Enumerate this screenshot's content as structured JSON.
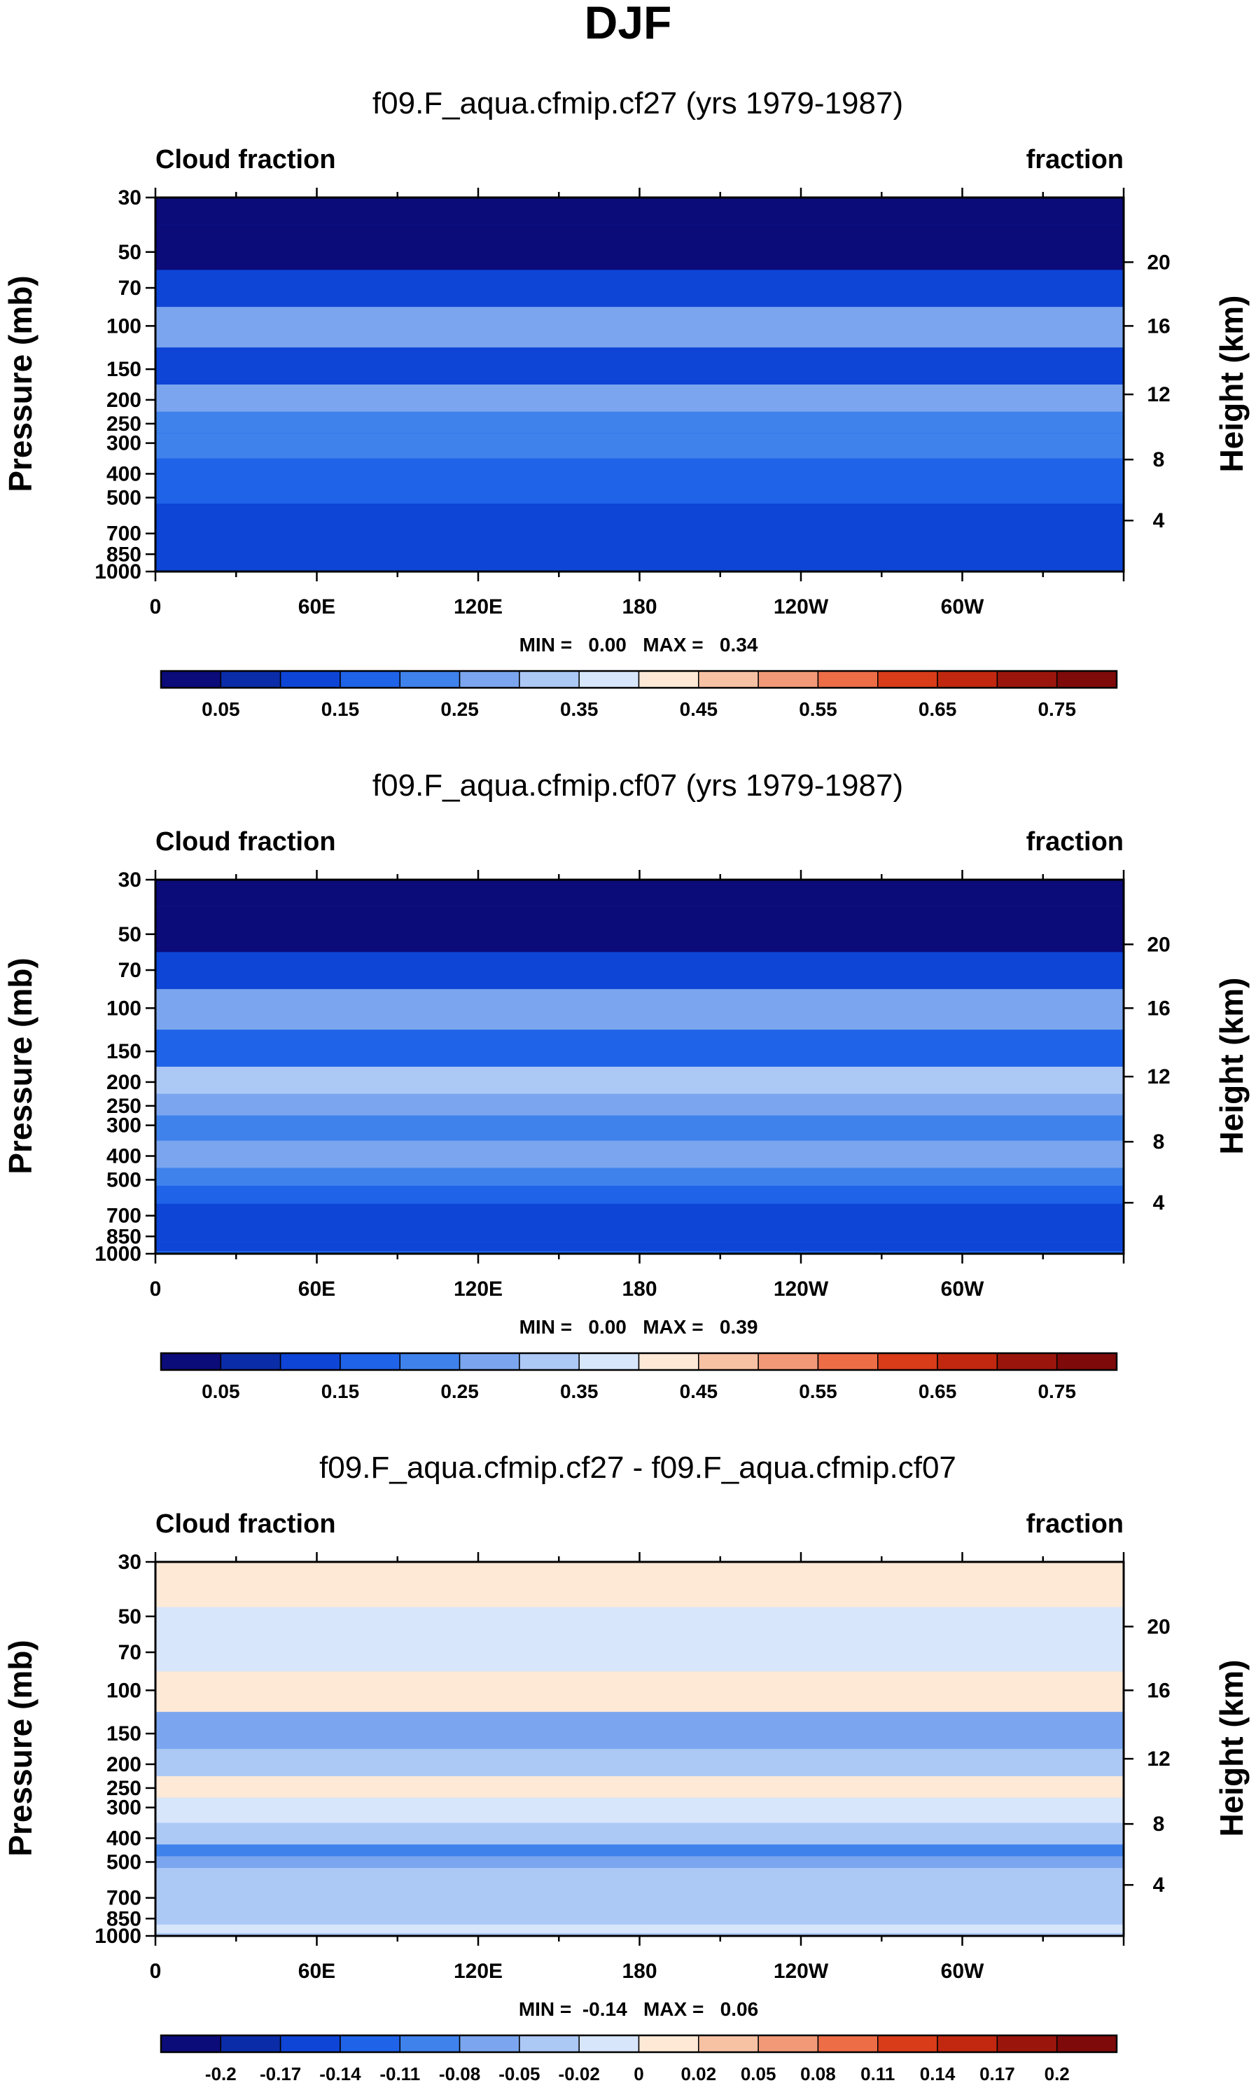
{
  "figure": {
    "title": "DJF"
  },
  "colors": {
    "palette12": [
      "#0b0b7a",
      "#0a2ca8",
      "#0e45d6",
      "#1f63e8",
      "#3f82ec",
      "#7ba6ef",
      "#acc8f5",
      "#d7e6fb",
      "#fde9d6",
      "#f7c2a4",
      "#f29a78",
      "#ed6d47",
      "#d93c19",
      "#b21f0e",
      "#7f0a0a"
    ],
    "palette16": [
      "#0b0b7a",
      "#0a2ca8",
      "#0e45d6",
      "#1f63e8",
      "#3f82ec",
      "#7ba6ef",
      "#acc8f5",
      "#d7e6fb",
      "#fde9d6",
      "#f7c2a4",
      "#f29a78",
      "#ed6d47",
      "#d93c19",
      "#c1280f",
      "#9a160c",
      "#7f0a0a"
    ]
  },
  "chart_data": [
    {
      "type": "heatmap",
      "title": "f09.F_aqua.cfmip.cf27 (yrs 1979-1987)",
      "left_label": "Cloud fraction",
      "right_label": "fraction",
      "ylabel": "Pressure (mb)",
      "y2label": "Height (km)",
      "x_ticks": [
        "0",
        "60E",
        "120E",
        "180",
        "120W",
        "60W"
      ],
      "x_tick_lon": [
        0,
        60,
        120,
        180,
        240,
        300
      ],
      "xlim": [
        0,
        360
      ],
      "y_ticks": [
        "30",
        "50",
        "70",
        "100",
        "150",
        "200",
        "250",
        "300",
        "400",
        "500",
        "700",
        "850",
        "1000"
      ],
      "y_tick_p": [
        30,
        50,
        70,
        100,
        150,
        200,
        250,
        300,
        400,
        500,
        700,
        850,
        1000
      ],
      "ylim_mb": [
        1000,
        30
      ],
      "height_ticks": [
        "20",
        "16",
        "12",
        "8",
        "4"
      ],
      "height_tick_p": [
        55,
        100,
        190,
        350,
        620
      ],
      "stats_text": "MIN =   0.00   MAX =   0.34",
      "colorbar_labels": [
        "0.05",
        "0.15",
        "0.25",
        "0.35",
        "0.45",
        "0.55",
        "0.65",
        "0.75"
      ],
      "colorbar_bins": 16,
      "levels_mb": [
        {
          "p": 30,
          "value": 0.02
        },
        {
          "p": 50,
          "value": 0.04
        },
        {
          "p": 70,
          "value": 0.12
        },
        {
          "p": 100,
          "value": 0.3
        },
        {
          "p": 150,
          "value": 0.14
        },
        {
          "p": 200,
          "value": 0.28
        },
        {
          "p": 250,
          "value": 0.24
        },
        {
          "p": 300,
          "value": 0.2
        },
        {
          "p": 400,
          "value": 0.17
        },
        {
          "p": 500,
          "value": 0.16
        },
        {
          "p": 560,
          "value": 0.12
        },
        {
          "p": 700,
          "value": 0.11
        },
        {
          "p": 850,
          "value": 0.11
        },
        {
          "p": 1000,
          "value": 0.11
        }
      ]
    },
    {
      "type": "heatmap",
      "title": "f09.F_aqua.cfmip.cf07 (yrs 1979-1987)",
      "left_label": "Cloud fraction",
      "right_label": "fraction",
      "ylabel": "Pressure (mb)",
      "y2label": "Height (km)",
      "x_ticks": [
        "0",
        "60E",
        "120E",
        "180",
        "120W",
        "60W"
      ],
      "x_tick_lon": [
        0,
        60,
        120,
        180,
        240,
        300
      ],
      "xlim": [
        0,
        360
      ],
      "y_ticks": [
        "30",
        "50",
        "70",
        "100",
        "150",
        "200",
        "250",
        "300",
        "400",
        "500",
        "700",
        "850",
        "1000"
      ],
      "y_tick_p": [
        30,
        50,
        70,
        100,
        150,
        200,
        250,
        300,
        400,
        500,
        700,
        850,
        1000
      ],
      "ylim_mb": [
        1000,
        30
      ],
      "height_ticks": [
        "20",
        "16",
        "12",
        "8",
        "4"
      ],
      "height_tick_p": [
        55,
        100,
        190,
        350,
        620
      ],
      "stats_text": "MIN =   0.00   MAX =   0.39",
      "colorbar_labels": [
        "0.05",
        "0.15",
        "0.25",
        "0.35",
        "0.45",
        "0.55",
        "0.65",
        "0.75"
      ],
      "colorbar_bins": 16,
      "levels_mb": [
        {
          "p": 30,
          "value": 0.02
        },
        {
          "p": 50,
          "value": 0.04
        },
        {
          "p": 70,
          "value": 0.12
        },
        {
          "p": 100,
          "value": 0.3
        },
        {
          "p": 150,
          "value": 0.16
        },
        {
          "p": 200,
          "value": 0.33
        },
        {
          "p": 250,
          "value": 0.28
        },
        {
          "p": 300,
          "value": 0.22
        },
        {
          "p": 400,
          "value": 0.27
        },
        {
          "p": 500,
          "value": 0.22
        },
        {
          "p": 560,
          "value": 0.16
        },
        {
          "p": 700,
          "value": 0.15
        },
        {
          "p": 850,
          "value": 0.14
        },
        {
          "p": 950,
          "value": 0.12
        },
        {
          "p": 1000,
          "value": 0.16
        }
      ]
    },
    {
      "type": "heatmap",
      "title": "f09.F_aqua.cfmip.cf27 - f09.F_aqua.cfmip.cf07",
      "left_label": "Cloud fraction",
      "right_label": "fraction",
      "ylabel": "Pressure (mb)",
      "y2label": "Height (km)",
      "x_ticks": [
        "0",
        "60E",
        "120E",
        "180",
        "120W",
        "60W"
      ],
      "x_tick_lon": [
        0,
        60,
        120,
        180,
        240,
        300
      ],
      "xlim": [
        0,
        360
      ],
      "y_ticks": [
        "30",
        "50",
        "70",
        "100",
        "150",
        "200",
        "250",
        "300",
        "400",
        "500",
        "700",
        "850",
        "1000"
      ],
      "y_tick_p": [
        30,
        50,
        70,
        100,
        150,
        200,
        250,
        300,
        400,
        500,
        700,
        850,
        1000
      ],
      "ylim_mb": [
        1000,
        30
      ],
      "height_ticks": [
        "20",
        "16",
        "12",
        "8",
        "4"
      ],
      "height_tick_p": [
        55,
        100,
        190,
        350,
        620
      ],
      "stats_text": "MIN =  -0.14   MAX =   0.06",
      "colorbar_labels": [
        "-0.2",
        "-0.17",
        "-0.14",
        "-0.11",
        "-0.08",
        "-0.05",
        "-0.02",
        "0",
        "0.02",
        "0.05",
        "0.08",
        "0.11",
        "0.14",
        "0.17",
        "0.2"
      ],
      "colorbar_bins": 16,
      "levels_mb": [
        {
          "p": 30,
          "value": 0.0
        },
        {
          "p": 70,
          "value": -0.02
        },
        {
          "p": 100,
          "value": 0.01
        },
        {
          "p": 150,
          "value": -0.06
        },
        {
          "p": 200,
          "value": -0.03
        },
        {
          "p": 250,
          "value": 0.01
        },
        {
          "p": 300,
          "value": -0.02
        },
        {
          "p": 400,
          "value": -0.05
        },
        {
          "p": 450,
          "value": -0.1
        },
        {
          "p": 500,
          "value": -0.07
        },
        {
          "p": 560,
          "value": -0.04
        },
        {
          "p": 700,
          "value": -0.04
        },
        {
          "p": 850,
          "value": -0.04
        },
        {
          "p": 950,
          "value": -0.01
        },
        {
          "p": 1000,
          "value": -0.04
        }
      ]
    }
  ]
}
